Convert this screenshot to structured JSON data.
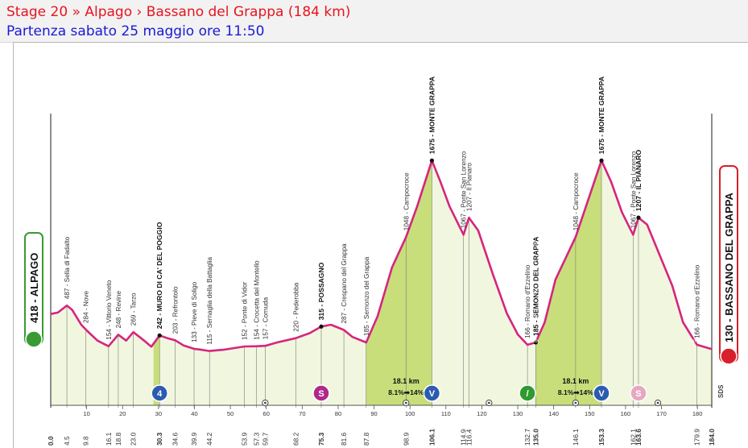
{
  "header": {
    "title": "Stage 20 » Alpago › Bassano del Grappa (184 km)",
    "subtitle": "Partenza sabato 25 maggio ore 11:50"
  },
  "chart_data": {
    "type": "area",
    "xlim": [
      0,
      184
    ],
    "ylim": [
      0,
      1800
    ],
    "profile": [
      [
        0,
        418
      ],
      [
        2,
        430
      ],
      [
        4.5,
        487
      ],
      [
        6,
        450
      ],
      [
        8.5,
        330
      ],
      [
        10,
        284
      ],
      [
        13,
        200
      ],
      [
        16.1,
        154
      ],
      [
        18.8,
        248
      ],
      [
        21,
        200
      ],
      [
        23,
        269
      ],
      [
        26,
        200
      ],
      [
        28,
        150
      ],
      [
        30.3,
        242
      ],
      [
        32.5,
        220
      ],
      [
        34.6,
        203
      ],
      [
        37,
        160
      ],
      [
        39.9,
        133
      ],
      [
        42,
        125
      ],
      [
        44.2,
        115
      ],
      [
        48,
        125
      ],
      [
        53.9,
        152
      ],
      [
        57.3,
        154
      ],
      [
        59.7,
        157
      ],
      [
        63,
        185
      ],
      [
        68.2,
        220
      ],
      [
        72,
        260
      ],
      [
        75.3,
        315
      ],
      [
        78,
        330
      ],
      [
        81.6,
        287
      ],
      [
        84,
        230
      ],
      [
        87.8,
        185
      ],
      [
        91,
        400
      ],
      [
        95,
        800
      ],
      [
        98.9,
        1048
      ],
      [
        102,
        1300
      ],
      [
        106.1,
        1675
      ],
      [
        108.5,
        1500
      ],
      [
        111,
        1300
      ],
      [
        114.9,
        1067
      ],
      [
        116.4,
        1207
      ],
      [
        119,
        1100
      ],
      [
        123,
        750
      ],
      [
        127,
        420
      ],
      [
        130,
        250
      ],
      [
        132.7,
        166
      ],
      [
        135,
        185
      ],
      [
        137.5,
        350
      ],
      [
        140.5,
        700
      ],
      [
        146.1,
        1048
      ],
      [
        149,
        1300
      ],
      [
        153.3,
        1675
      ],
      [
        156,
        1500
      ],
      [
        159,
        1250
      ],
      [
        162.1,
        1067
      ],
      [
        163.6,
        1207
      ],
      [
        166,
        1150
      ],
      [
        169.5,
        900
      ],
      [
        173,
        650
      ],
      [
        176,
        350
      ],
      [
        179.9,
        166
      ],
      [
        184,
        130
      ]
    ],
    "x_ticks": [
      10,
      20,
      30,
      40,
      50,
      60,
      70,
      80,
      90,
      100,
      110,
      120,
      130,
      140,
      150,
      160,
      170,
      180
    ],
    "km_marks": [
      "0.0",
      "4.5",
      "9.8",
      "16.1",
      "18.8",
      "23.0",
      "30.3",
      "34.6",
      "39.9",
      "44.2",
      "53.9",
      "57.3",
      "59.7",
      "68.2",
      "75.3",
      "81.6",
      "87.8",
      "98.9",
      "106.1",
      "114.9",
      "116.4",
      "132.7",
      "135.0",
      "146.1",
      "153.3",
      "162.1",
      "163.6",
      "179.9",
      "184.0"
    ],
    "y_ticks": [
      200,
      400,
      600,
      800,
      1000,
      1200,
      1400
    ],
    "y_tick_x": [
      133,
      177
    ],
    "points": [
      {
        "km": 4.5,
        "label": "487 - Sella di Fadalto",
        "bold": false
      },
      {
        "km": 9.8,
        "label": "284 - Nove",
        "bold": false
      },
      {
        "km": 16.1,
        "label": "154 - Vittorio Veneto",
        "bold": false
      },
      {
        "km": 18.8,
        "label": "248 - Revine",
        "bold": false
      },
      {
        "km": 23.0,
        "label": "269 - Tarzo",
        "bold": false
      },
      {
        "km": 30.3,
        "label": "242 - MURO DI CA' DEL POGGIO",
        "bold": true
      },
      {
        "km": 34.6,
        "label": "203 - Refrontolo",
        "bold": false
      },
      {
        "km": 39.9,
        "label": "133 - Pieve di Soligo",
        "bold": false
      },
      {
        "km": 44.2,
        "label": "115 - Sernaglia della Battaglia",
        "bold": false
      },
      {
        "km": 53.9,
        "label": "152 - Ponte di Vidor",
        "bold": false
      },
      {
        "km": 57.3,
        "label": "154 - Crocetta del Montello",
        "bold": false
      },
      {
        "km": 59.7,
        "label": "157 - Cornuda",
        "bold": false
      },
      {
        "km": 68.2,
        "label": "220 - Pederobba",
        "bold": false
      },
      {
        "km": 75.3,
        "label": "315 - POSSAGNO",
        "bold": true
      },
      {
        "km": 81.6,
        "label": "287 - Crespano del Grappa",
        "bold": false
      },
      {
        "km": 87.8,
        "label": "185 - Semonzo del Grappa",
        "bold": false
      },
      {
        "km": 98.9,
        "label": "1048 - Campocroce",
        "bold": false
      },
      {
        "km": 106.1,
        "label": "1675 - MONTE GRAPPA",
        "bold": true
      },
      {
        "km": 114.9,
        "label": "1067 - Ponte San Lorenzo",
        "bold": false
      },
      {
        "km": 116.4,
        "label": "1207 - Il Pianaro",
        "bold": false
      },
      {
        "km": 132.7,
        "label": "166 - Romano d'Ezzelino",
        "bold": false
      },
      {
        "km": 135.0,
        "label": "185 - SEMONZO DEL GRAPPA",
        "bold": true
      },
      {
        "km": 146.1,
        "label": "1048 - Campocroce",
        "bold": false
      },
      {
        "km": 153.3,
        "label": "1675 - MONTE GRAPPA",
        "bold": true
      },
      {
        "km": 162.1,
        "label": "1067 - Ponte San Lorenzo",
        "bold": false
      },
      {
        "km": 163.6,
        "label": "1207 - IL PIANARO",
        "bold": true
      },
      {
        "km": 179.9,
        "label": "166 - Romano d'Ezzelino",
        "bold": false
      }
    ],
    "start": {
      "km": 0,
      "label": "418 - ALPAGO",
      "color": "#3a9a34"
    },
    "finish": {
      "km": 184,
      "label": "130 - BASSANO DEL GRAPPA",
      "color": "#d8202a"
    },
    "climbs": [
      {
        "from": 28.6,
        "to": 30.3,
        "color": "#c8de7a"
      },
      {
        "from": 87.8,
        "to": 106.1,
        "color": "#c8de7a"
      },
      {
        "from": 135.0,
        "to": 153.3,
        "color": "#c8de7a"
      }
    ],
    "climb_stats": [
      {
        "km": 98.9,
        "length": "18.1 km",
        "grades": "8.1%➡14%"
      },
      {
        "km": 146.1,
        "length": "18.1 km",
        "grades": "8.1%➡14%"
      }
    ],
    "markers": [
      {
        "km": 30.3,
        "letter": "4",
        "fill": "#2b5cb0"
      },
      {
        "km": 75.3,
        "letter": "S",
        "fill": "#b0288a"
      },
      {
        "km": 106.1,
        "letter": "V",
        "fill": "#2b5cb0"
      },
      {
        "km": 132.7,
        "letter": "/",
        "fill": "#2f9a2f"
      },
      {
        "km": 153.3,
        "letter": "V",
        "fill": "#2b5cb0"
      },
      {
        "km": 163.6,
        "letter": "S",
        "fill": "#e6a8c0"
      }
    ],
    "small_markers": [
      59.7,
      98.9,
      122,
      146.1,
      169
    ],
    "watermark": "SDS",
    "colors": {
      "line": "#d6257e",
      "fill": "#f1f7de",
      "climb": "#c8de7a",
      "axis": "#555555"
    }
  }
}
